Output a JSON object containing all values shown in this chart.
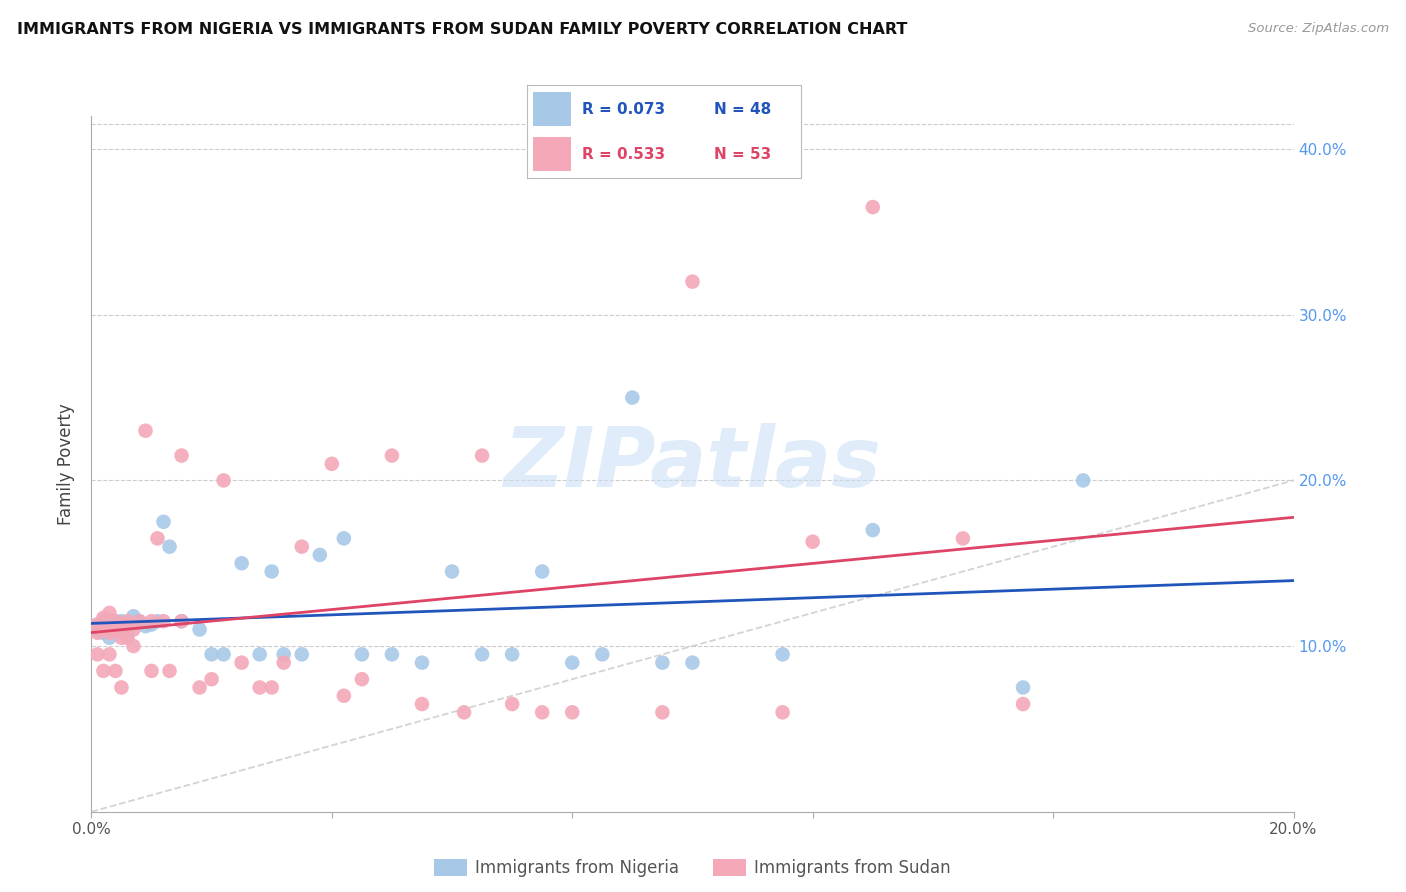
{
  "title": "IMMIGRANTS FROM NIGERIA VS IMMIGRANTS FROM SUDAN FAMILY POVERTY CORRELATION CHART",
  "source": "Source: ZipAtlas.com",
  "ylabel": "Family Poverty",
  "watermark": "ZIPatlas",
  "xlim": [
    0.0,
    0.2
  ],
  "ylim": [
    0.0,
    0.42
  ],
  "color_nigeria": "#a8c8e8",
  "color_sudan": "#f4a8b8",
  "line_color_nigeria": "#2255bb",
  "line_color_sudan": "#dd4466",
  "line_color_diagonal": "#cccccc",
  "nigeria_x": [
    0.001,
    0.001,
    0.002,
    0.002,
    0.003,
    0.003,
    0.003,
    0.004,
    0.004,
    0.005,
    0.005,
    0.005,
    0.006,
    0.006,
    0.007,
    0.008,
    0.009,
    0.01,
    0.011,
    0.012,
    0.013,
    0.015,
    0.018,
    0.02,
    0.022,
    0.025,
    0.028,
    0.03,
    0.032,
    0.035,
    0.038,
    0.042,
    0.045,
    0.05,
    0.055,
    0.06,
    0.065,
    0.07,
    0.075,
    0.08,
    0.085,
    0.09,
    0.095,
    0.1,
    0.115,
    0.13,
    0.155,
    0.165
  ],
  "nigeria_y": [
    0.113,
    0.11,
    0.115,
    0.108,
    0.112,
    0.116,
    0.105,
    0.115,
    0.11,
    0.113,
    0.108,
    0.115,
    0.112,
    0.107,
    0.118,
    0.115,
    0.112,
    0.113,
    0.115,
    0.175,
    0.16,
    0.115,
    0.11,
    0.095,
    0.095,
    0.15,
    0.095,
    0.145,
    0.095,
    0.095,
    0.155,
    0.165,
    0.095,
    0.095,
    0.09,
    0.145,
    0.095,
    0.095,
    0.145,
    0.09,
    0.095,
    0.25,
    0.09,
    0.09,
    0.095,
    0.17,
    0.075,
    0.2
  ],
  "sudan_x": [
    0.001,
    0.001,
    0.001,
    0.002,
    0.002,
    0.002,
    0.003,
    0.003,
    0.003,
    0.004,
    0.004,
    0.004,
    0.005,
    0.005,
    0.005,
    0.006,
    0.006,
    0.007,
    0.007,
    0.008,
    0.009,
    0.01,
    0.01,
    0.011,
    0.012,
    0.013,
    0.015,
    0.015,
    0.018,
    0.02,
    0.022,
    0.025,
    0.028,
    0.03,
    0.032,
    0.035,
    0.04,
    0.042,
    0.045,
    0.05,
    0.055,
    0.062,
    0.065,
    0.07,
    0.075,
    0.08,
    0.095,
    0.1,
    0.115,
    0.12,
    0.13,
    0.145,
    0.155
  ],
  "sudan_y": [
    0.108,
    0.113,
    0.095,
    0.117,
    0.11,
    0.085,
    0.12,
    0.108,
    0.095,
    0.115,
    0.11,
    0.085,
    0.113,
    0.105,
    0.075,
    0.115,
    0.105,
    0.11,
    0.1,
    0.115,
    0.23,
    0.115,
    0.085,
    0.165,
    0.115,
    0.085,
    0.215,
    0.115,
    0.075,
    0.08,
    0.2,
    0.09,
    0.075,
    0.075,
    0.09,
    0.16,
    0.21,
    0.07,
    0.08,
    0.215,
    0.065,
    0.06,
    0.215,
    0.065,
    0.06,
    0.06,
    0.06,
    0.32,
    0.06,
    0.163,
    0.365,
    0.165,
    0.065
  ]
}
